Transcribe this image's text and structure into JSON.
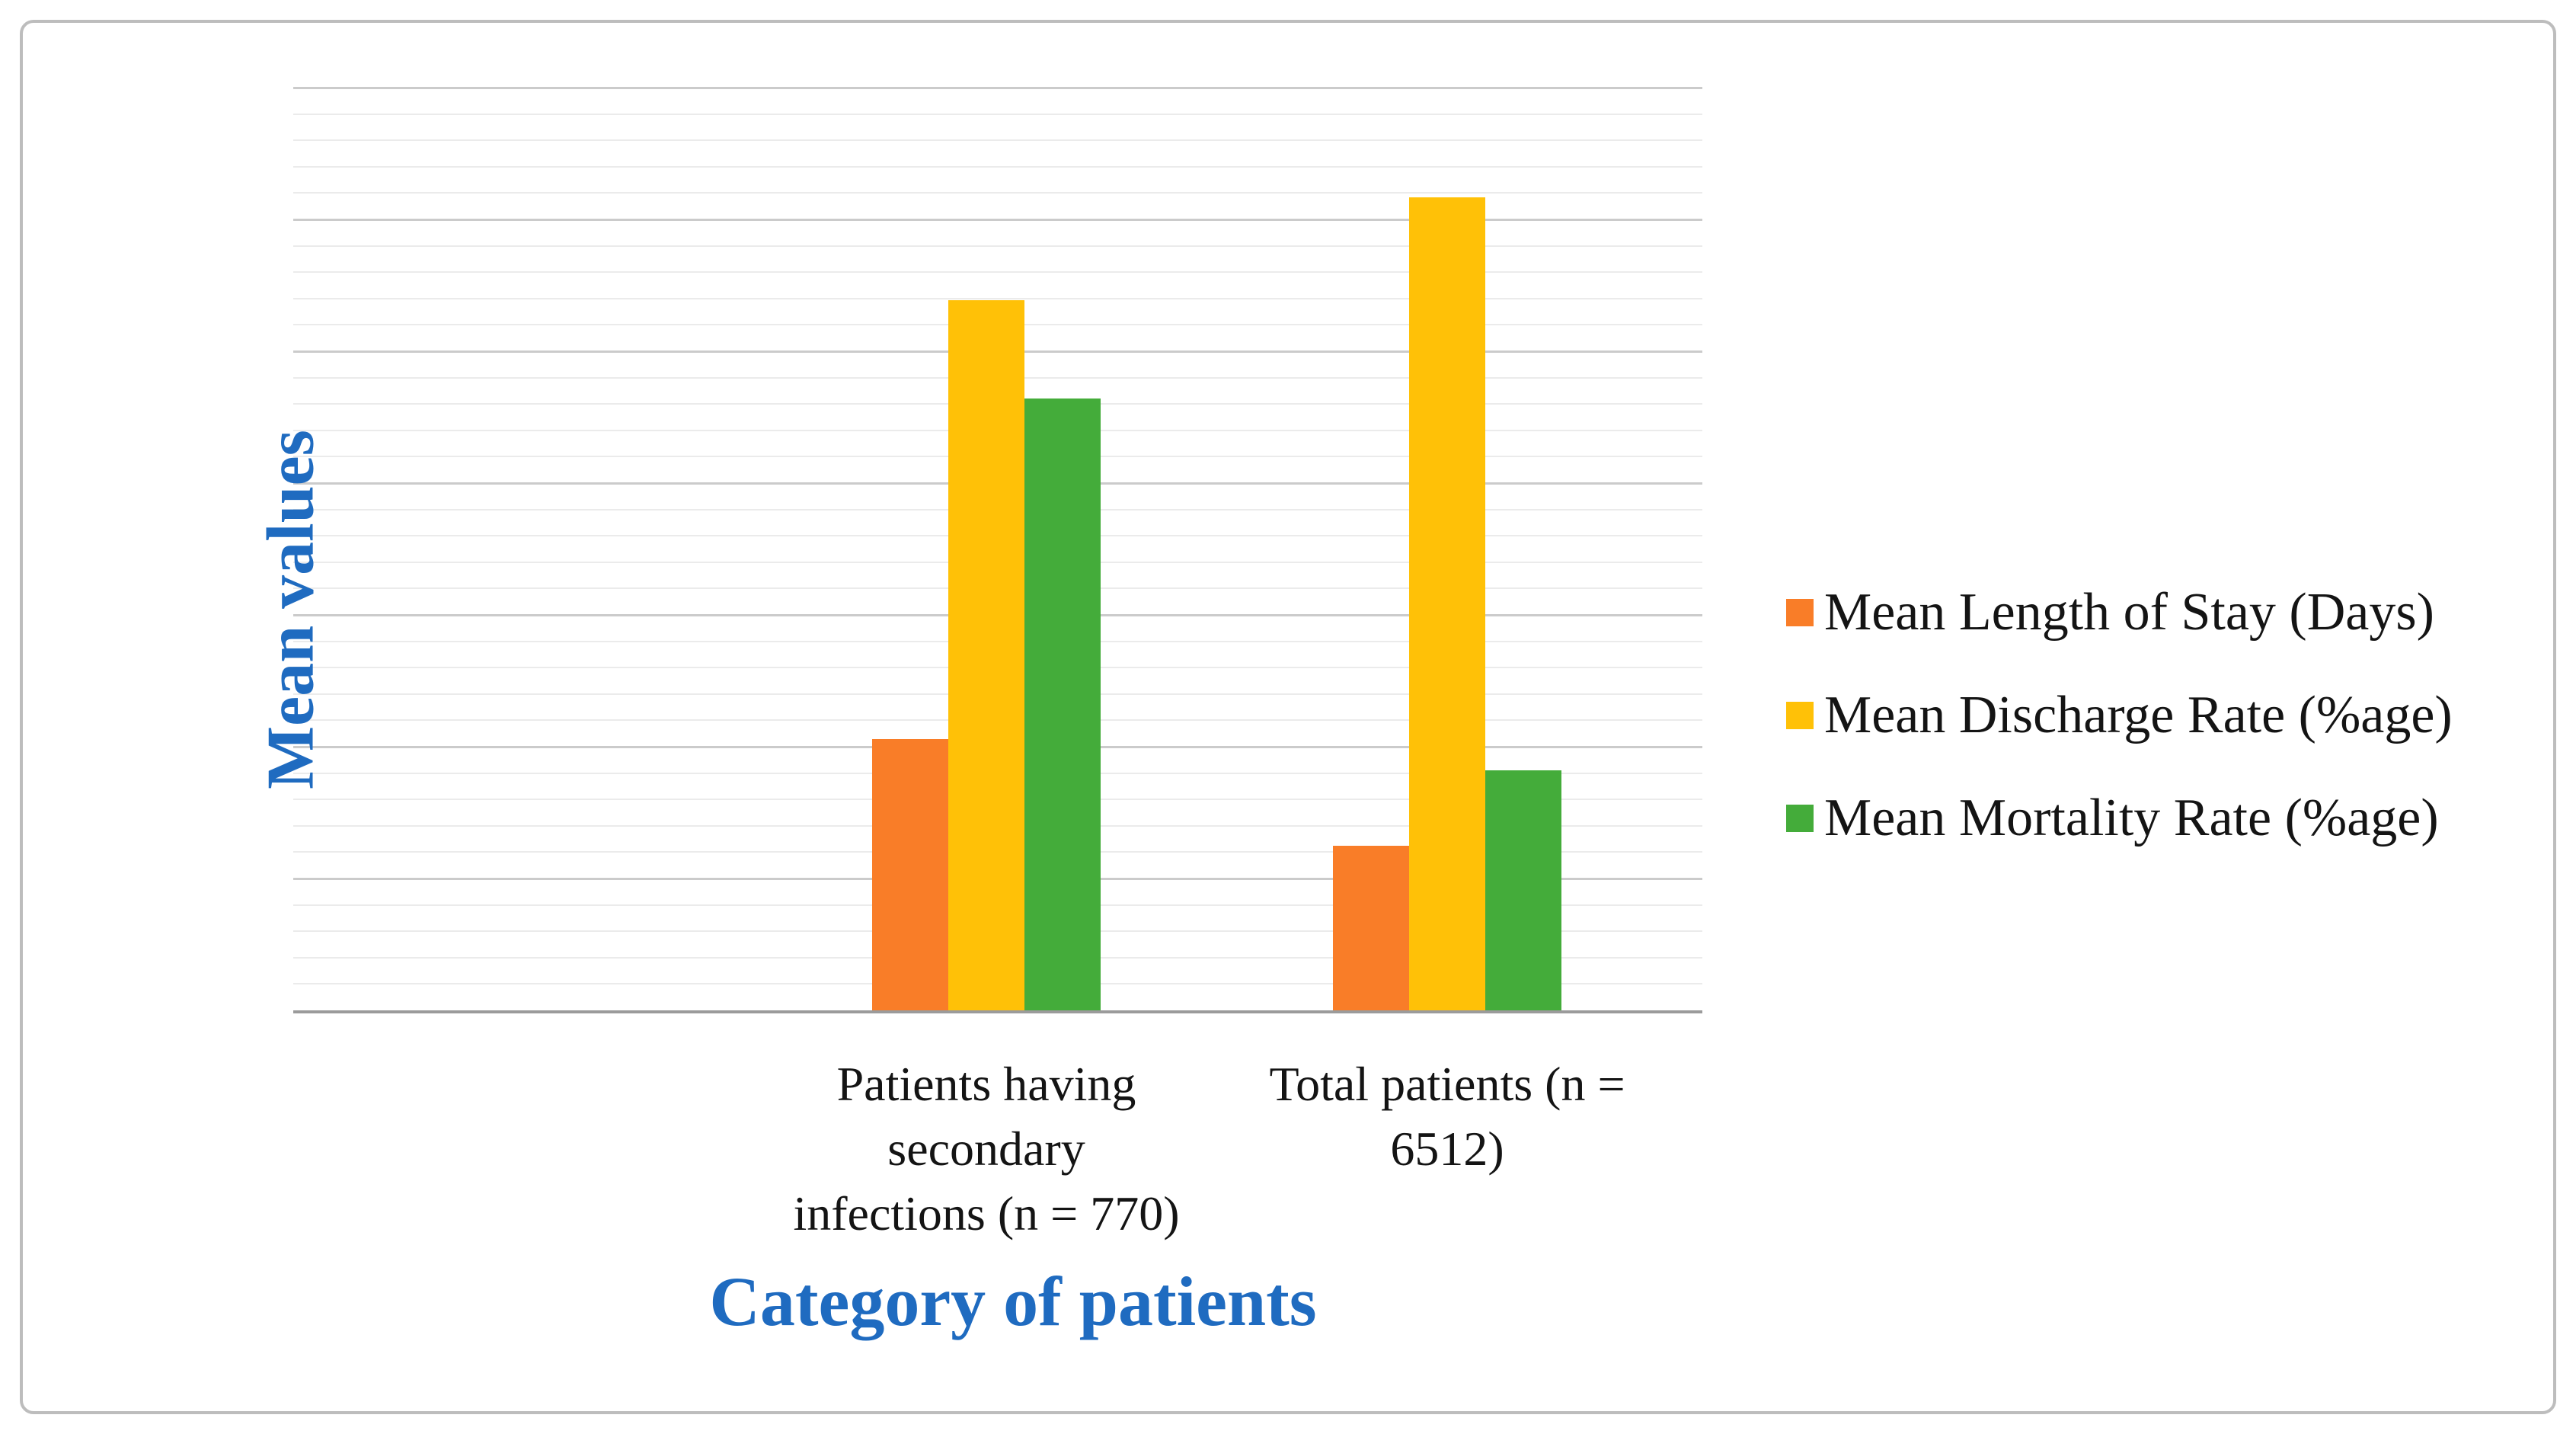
{
  "chart_data": {
    "type": "bar",
    "title": "",
    "categories": [
      "Patients having secondary infections (n = 770)",
      "Total patients (n = 6512)"
    ],
    "category_lines": [
      [
        "Patients having",
        "secondary",
        "infections (n = 770)"
      ],
      [
        "Total patients (n =",
        "6512)"
      ]
    ],
    "series": [
      {
        "name": "Mean Length of Stay (Days)",
        "color": "#f97d28",
        "values": [
          20.6,
          12.5
        ]
      },
      {
        "name": "Mean Discharge Rate (%age)",
        "color": "#ffc107",
        "values": [
          53.9,
          61.7
        ]
      },
      {
        "name": "Mean Mortality Rate (%age)",
        "color": "#44ac3a",
        "values": [
          46.4,
          18.2
        ]
      }
    ],
    "xlabel": "Category of patients",
    "ylabel": "Mean values",
    "ylim": [
      0,
      70
    ],
    "yticks": [
      0,
      10,
      20,
      30,
      40,
      50,
      60,
      70
    ],
    "y_major_step": 10,
    "y_minor_step": 2,
    "grid": "horizontal major+minor, no vertical gridlines, no y-axis line",
    "legend_position": "right",
    "colors": {
      "axis_title_blue": "#1f6bc0",
      "axis_line": "#9b9b9b",
      "major_gridline": "#cbcbcb",
      "minor_gridline": "#ebebeb",
      "frame_border": "#bdbdbd",
      "text": "#141414"
    }
  }
}
